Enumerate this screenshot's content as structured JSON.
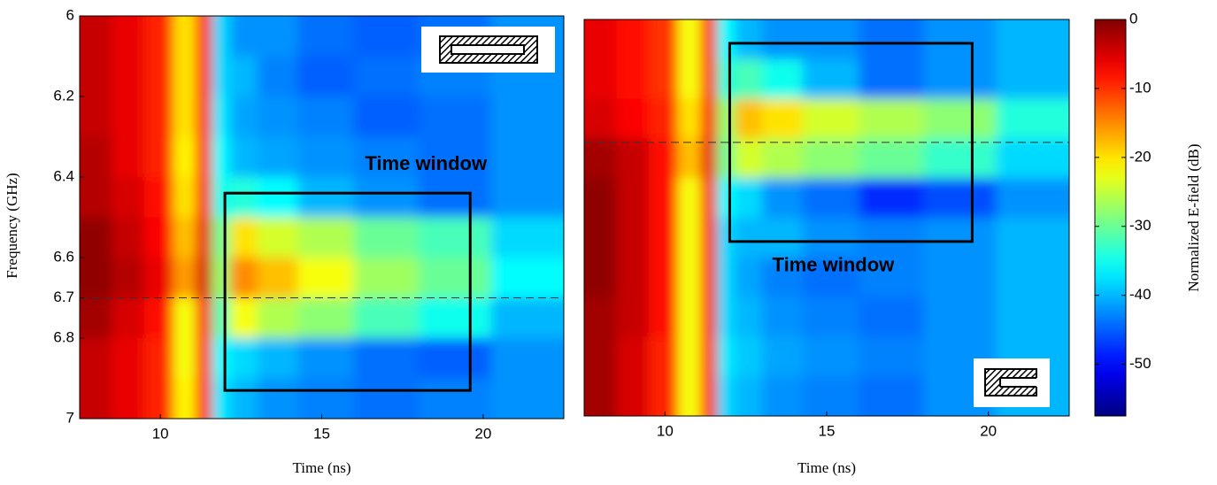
{
  "chart_data": [
    {
      "type": "heatmap",
      "xlabel": "Time (ns)",
      "ylabel": "Frequency (GHz)",
      "xlim": [
        7.5,
        22.5
      ],
      "ylim": [
        6,
        7
      ],
      "xticks": [
        10,
        15,
        20
      ],
      "yticks": [
        6,
        6.2,
        6.4,
        6.6,
        6.7,
        6.8,
        7
      ],
      "x": [
        8,
        9,
        10,
        10.8,
        11.4,
        11.8,
        12.5,
        13.5,
        15,
        17,
        19,
        21.5
      ],
      "y": [
        6.05,
        6.15,
        6.25,
        6.35,
        6.45,
        6.55,
        6.65,
        6.75,
        6.85,
        6.95
      ],
      "z": [
        [
          -4,
          -6,
          -9,
          -20,
          -8,
          -38,
          -42,
          -42,
          -44,
          -45,
          -44,
          -42
        ],
        [
          -4,
          -6,
          -9,
          -20,
          -8,
          -38,
          -40,
          -43,
          -45,
          -44,
          -43,
          -42
        ],
        [
          -4,
          -6,
          -9,
          -20,
          -8,
          -37,
          -41,
          -42,
          -43,
          -45,
          -44,
          -42
        ],
        [
          -3,
          -6,
          -9,
          -21,
          -8,
          -36,
          -40,
          -41,
          -42,
          -43,
          -44,
          -42
        ],
        [
          -3,
          -5,
          -8,
          -20,
          -7,
          -35,
          -34,
          -36,
          -40,
          -42,
          -44,
          -42
        ],
        [
          -1,
          -4,
          -7,
          -18,
          -6,
          -30,
          -20,
          -24,
          -26,
          -30,
          -32,
          -38
        ],
        [
          -1,
          -3,
          -6,
          -16,
          -5,
          -28,
          -15,
          -18,
          -22,
          -27,
          -30,
          -36
        ],
        [
          -2,
          -5,
          -8,
          -22,
          -7,
          -32,
          -22,
          -26,
          -28,
          -32,
          -35,
          -40
        ],
        [
          -4,
          -6,
          -9,
          -22,
          -8,
          -36,
          -38,
          -40,
          -42,
          -44,
          -45,
          -42
        ],
        [
          -4,
          -6,
          -9,
          -21,
          -8,
          -37,
          -40,
          -42,
          -43,
          -44,
          -43,
          -42
        ]
      ],
      "annotation": "Time window",
      "window": {
        "x": [
          12,
          19.6
        ],
        "y": [
          6.44,
          6.93
        ]
      },
      "marker_frequency": 6.7
    },
    {
      "type": "heatmap",
      "xlabel": "Time (ns)",
      "xlim": [
        7.5,
        22.5
      ],
      "ylim": [
        6,
        7
      ],
      "xticks": [
        10,
        15,
        20
      ],
      "x": [
        8,
        9,
        10,
        10.8,
        11.4,
        11.8,
        12.5,
        13.5,
        15,
        17,
        19,
        21.5
      ],
      "y": [
        6.05,
        6.15,
        6.25,
        6.35,
        6.45,
        6.55,
        6.65,
        6.75,
        6.85,
        6.95
      ],
      "z": [
        [
          -6,
          -8,
          -10,
          -22,
          -8,
          -36,
          -40,
          -42,
          -42,
          -44,
          -42,
          -40
        ],
        [
          -6,
          -8,
          -10,
          -22,
          -8,
          -34,
          -32,
          -35,
          -40,
          -44,
          -42,
          -40
        ],
        [
          -5,
          -7,
          -9,
          -20,
          -7,
          -28,
          -18,
          -20,
          -24,
          -26,
          -28,
          -34
        ],
        [
          -2,
          -4,
          -8,
          -18,
          -6,
          -30,
          -24,
          -26,
          -28,
          -30,
          -33,
          -38
        ],
        [
          -1,
          -4,
          -8,
          -22,
          -7,
          -36,
          -38,
          -42,
          -44,
          -48,
          -46,
          -42
        ],
        [
          -1,
          -4,
          -8,
          -22,
          -7,
          -38,
          -40,
          -40,
          -42,
          -43,
          -42,
          -40
        ],
        [
          -1,
          -4,
          -8,
          -22,
          -7,
          -38,
          -41,
          -43,
          -44,
          -43,
          -42,
          -40
        ],
        [
          -2,
          -4,
          -8,
          -22,
          -7,
          -38,
          -40,
          -42,
          -43,
          -44,
          -42,
          -40
        ],
        [
          -2,
          -5,
          -9,
          -22,
          -8,
          -37,
          -39,
          -41,
          -42,
          -43,
          -42,
          -40
        ],
        [
          -2,
          -5,
          -9,
          -22,
          -8,
          -38,
          -40,
          -42,
          -43,
          -44,
          -42,
          -40
        ]
      ],
      "annotation": "Time window",
      "window": {
        "x": [
          12,
          19.5
        ],
        "y": [
          6.06,
          6.56
        ]
      },
      "marker_frequency": 6.31,
      "colorbar": {
        "label": "Normalized E-field (dB)",
        "clim": [
          -57.5,
          0
        ],
        "ticks": [
          0,
          -10,
          -20,
          -30,
          -40,
          -50
        ]
      }
    }
  ]
}
